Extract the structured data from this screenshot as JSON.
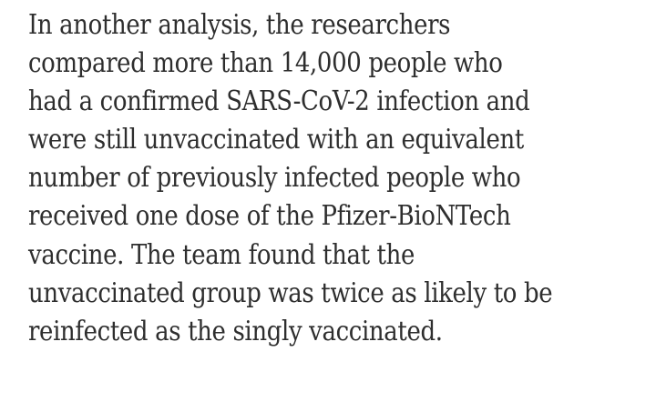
{
  "article": {
    "lines": [
      "In another analysis, the researchers",
      "compared more than 14,000 people who",
      "had a confirmed SARS-CoV-2 infection and",
      "were still unvaccinated with an equivalent",
      "number of previously infected people who",
      "received one dose of the Pfizer-BioNTech",
      "vaccine. The team found that the",
      "unvaccinated group was twice as likely to be",
      "reinfected as the singly vaccinated."
    ]
  }
}
